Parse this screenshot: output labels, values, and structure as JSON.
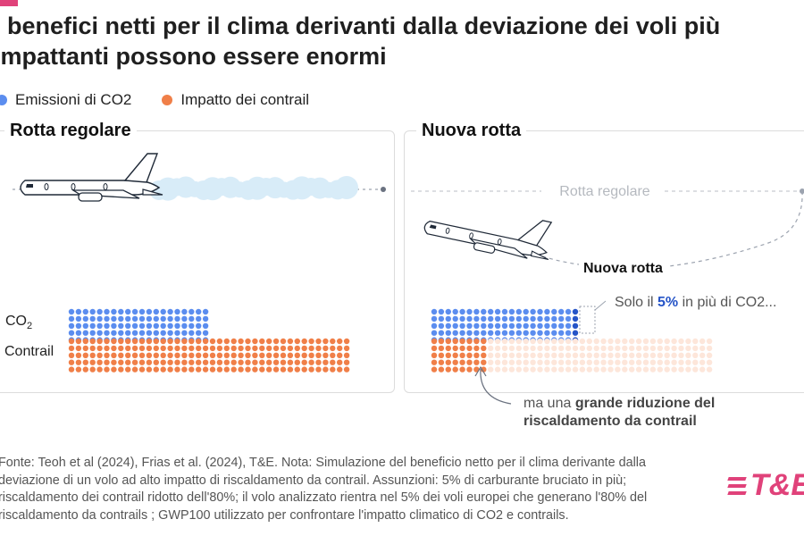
{
  "title_lines": [
    "I benefici netti per il clima derivanti dalla deviazione dei voli più",
    "impattanti possono essere enormi"
  ],
  "legend": {
    "co2": {
      "label": "Emissioni di CO2",
      "color": "#5b8def"
    },
    "contrail": {
      "label": "Impatto dei contrail",
      "color": "#f07f48"
    }
  },
  "panels": {
    "left": {
      "title": "Rotta regolare"
    },
    "right": {
      "title": "Nuova rotta",
      "regular_route_label": "Rotta regolare",
      "new_route_label": "Nuova rotta",
      "annotation_co2": {
        "pre": "Solo il ",
        "emph": "5%",
        "post": " in più di CO2..."
      },
      "annotation_contrail": {
        "pre": "ma una ",
        "emph": "grande riduzione del",
        "line2": "riscaldamento da contrail"
      }
    }
  },
  "chart_data": {
    "type": "dot-grid",
    "unit_description": "each dot = one unit of warming impact",
    "series": [
      {
        "name": "CO₂",
        "legend": "Emissioni di CO2",
        "color": "#5b8def"
      },
      {
        "name": "Contrail",
        "legend": "Impatto dei contrail",
        "color": "#f07f48"
      }
    ],
    "row_labels": [
      "CO",
      "Contrail"
    ],
    "co2_subscript": "2",
    "scenarios": [
      {
        "name": "Rotta regolare",
        "co2_units": 100,
        "contrail_units": 200,
        "contrail_faded_units": 0,
        "co2_extra_units": 0
      },
      {
        "name": "Nuova rotta",
        "co2_units": 100,
        "co2_extra_units": 5,
        "contrail_units": 40,
        "contrail_faded_units": 160
      }
    ],
    "assumptions": {
      "extra_fuel_percent": 5,
      "contrail_warming_reduction_percent": 80
    }
  },
  "footnote_lines": [
    "Fonte: Teoh et al (2024), Frias et al. (2024), T&E. Nota: Simulazione del beneficio netto per il clima derivante dalla",
    "deviazione di un volo ad alto impatto di riscaldamento da contrail. Assunzioni: 5% di carburante bruciato in più;",
    "riscaldamento dei contrail ridotto dell'80%; il volo analizzato rientra nel 5% dei voli europei che generano l'80% del",
    "riscaldamento da contrails ; GWP100 utilizzato per confrontare l'impatto climatico di CO2 e contrails."
  ],
  "brand": "T&E",
  "colors": {
    "accent": "#e0427a",
    "co2": "#5b8def",
    "co2_dark": "#2554c7",
    "contrail": "#f07f48",
    "contrail_faded": "#fde6da",
    "cloud": "#d8ecf8"
  }
}
